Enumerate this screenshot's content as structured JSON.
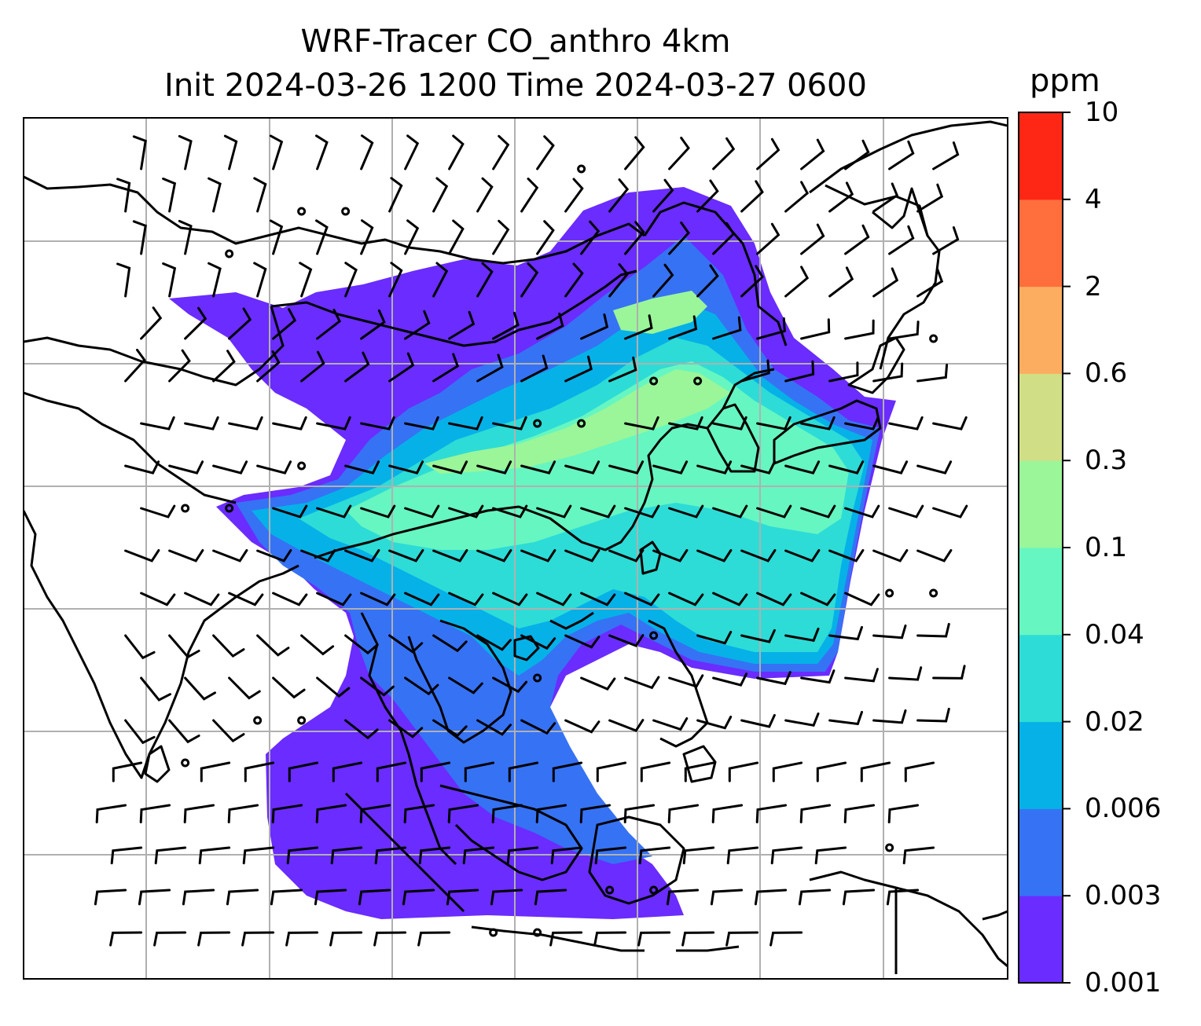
{
  "title": {
    "line1": "WRF-Tracer CO_anthro 4km",
    "line2": "Init 2024-03-26 1200 Time 2024-03-27 0600"
  },
  "colorbar": {
    "unit": "ppm",
    "levels": [
      "0.001",
      "0.003",
      "0.006",
      "0.02",
      "0.04",
      "0.1",
      "0.3",
      "0.6",
      "2",
      "4",
      "10"
    ],
    "colors": [
      "#6a2cff",
      "#3672f4",
      "#06b1e8",
      "#2ddcd6",
      "#66f6c1",
      "#9af699",
      "#d0de86",
      "#fdad5f",
      "#ff6e3c",
      "#fe2615"
    ]
  },
  "map": {
    "projection_grid": "lat-lon gridlines",
    "gridline_color": "#b0b0b0",
    "coastline_color": "#000000",
    "barb_color": "#000000",
    "tracer_field": "CO_anthro"
  }
}
